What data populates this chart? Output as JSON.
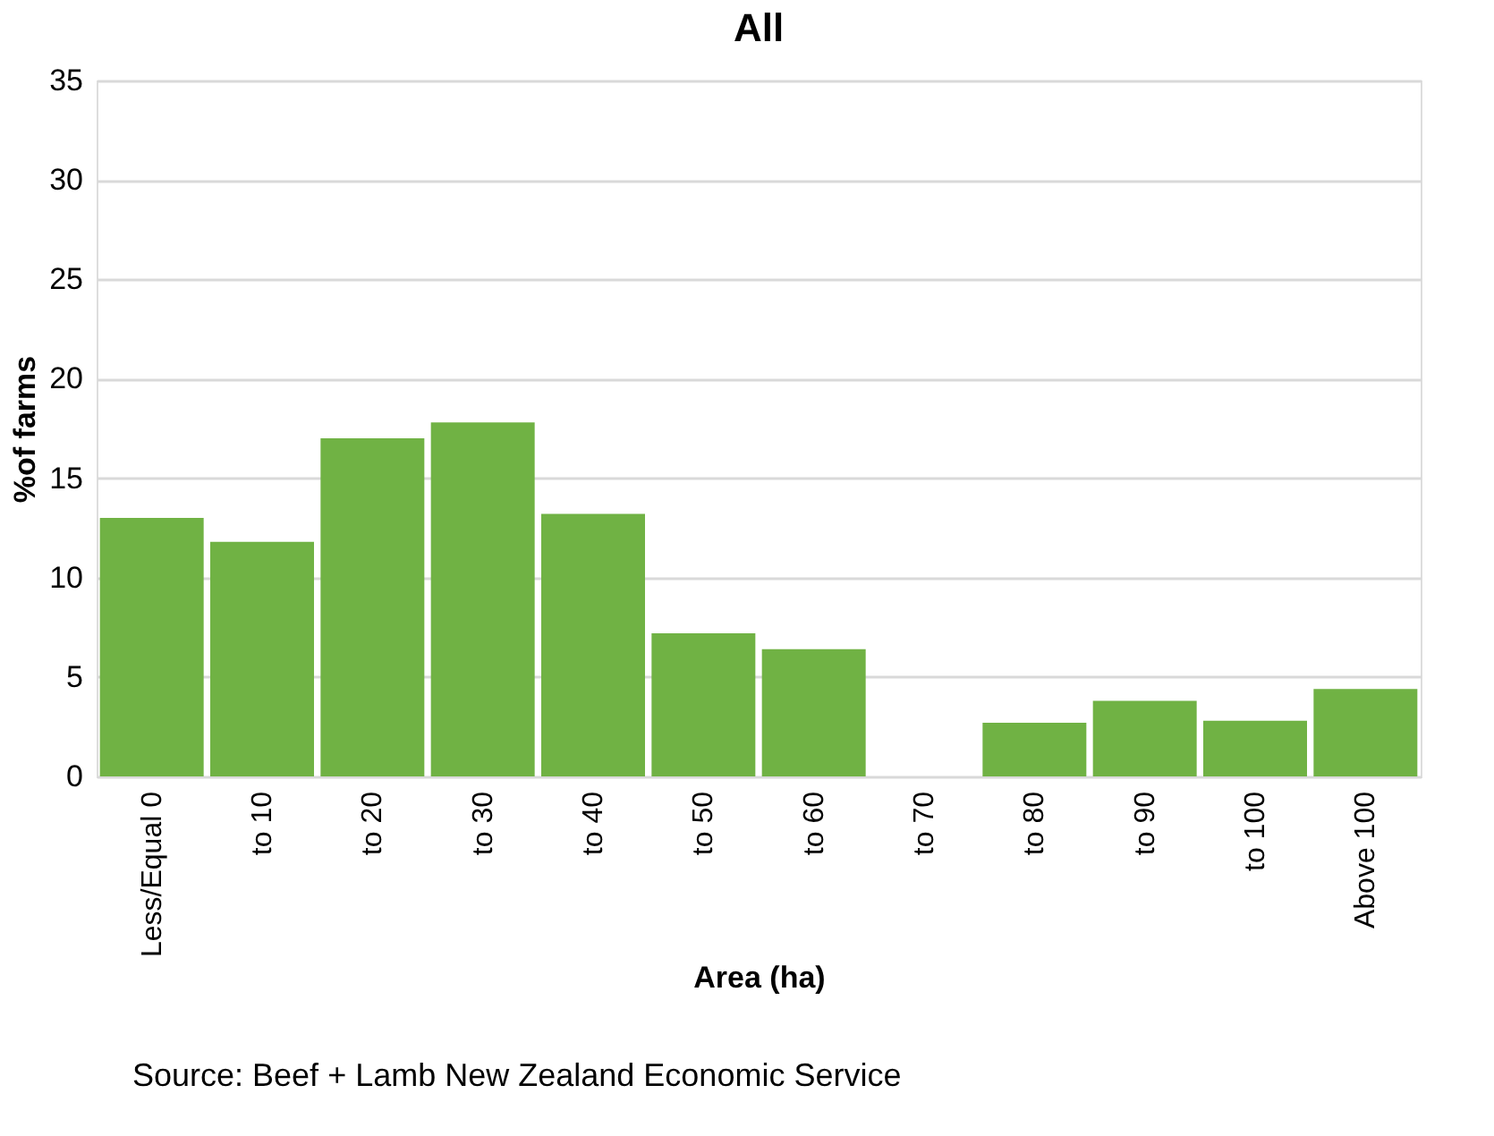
{
  "chart_data": {
    "type": "bar",
    "title": "All",
    "xlabel": "Area (ha)",
    "ylabel": "%of farms",
    "categories": [
      "Less/Equal 0",
      "to 10",
      "to 20",
      "to 30",
      "to 40",
      "to 50",
      "to 60",
      "to 70",
      "to 80",
      "to 90",
      "to 100",
      "Above 100"
    ],
    "values": [
      13.0,
      11.8,
      17.0,
      17.8,
      13.2,
      7.2,
      6.4,
      0,
      2.7,
      3.8,
      2.8,
      4.4
    ],
    "color": "#70b244",
    "ylim": [
      0,
      35
    ],
    "yticks": [
      0,
      5,
      10,
      15,
      20,
      25,
      30,
      35
    ],
    "grid": "y",
    "annotations": [
      "Source: Beef + Lamb New Zealand Economic Service"
    ]
  }
}
